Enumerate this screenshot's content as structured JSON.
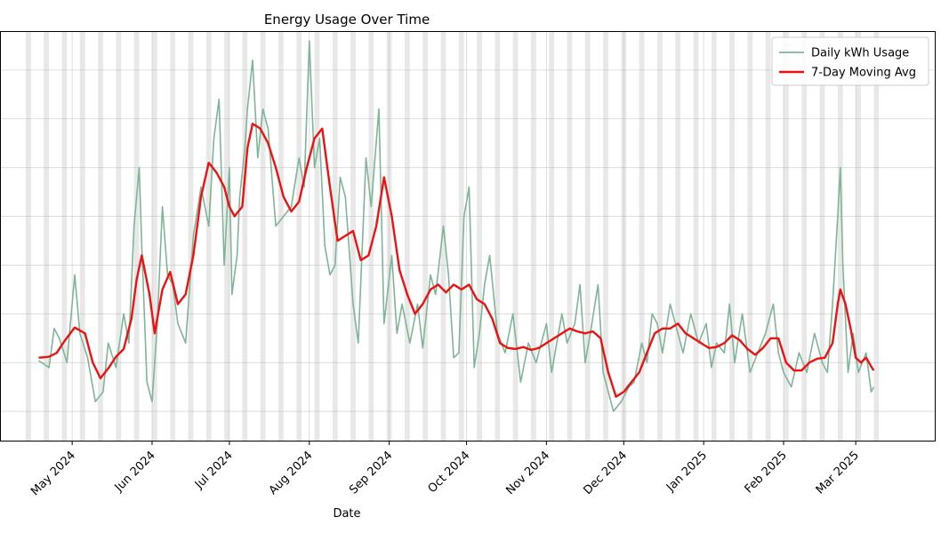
{
  "chart_data": {
    "type": "line",
    "title": "Energy Usage Over Time",
    "xlabel": "Date",
    "ylabel": "",
    "x_range": [
      "2024-04-03",
      "2025-04-01"
    ],
    "y_range": [
      0,
      42
    ],
    "grid": true,
    "legend_position": "top-right",
    "weekend_shading": true,
    "x_tick_labels": [
      {
        "date": "2024-05-01",
        "label": "May 2024"
      },
      {
        "date": "2024-06-01",
        "label": "Jun 2024"
      },
      {
        "date": "2024-07-01",
        "label": "Jul 2024"
      },
      {
        "date": "2024-08-01",
        "label": "Aug 2024"
      },
      {
        "date": "2024-09-01",
        "label": "Sep 2024"
      },
      {
        "date": "2024-10-01",
        "label": "Oct 2024"
      },
      {
        "date": "2024-11-01",
        "label": "Nov 2024"
      },
      {
        "date": "2024-12-01",
        "label": "Dec 2024"
      },
      {
        "date": "2025-01-01",
        "label": "Jan 2025"
      },
      {
        "date": "2025-02-01",
        "label": "Feb 2025"
      },
      {
        "date": "2025-03-01",
        "label": "Mar 2025"
      }
    ],
    "y_gridlines": [
      3,
      8,
      13,
      18,
      23,
      28,
      33,
      38
    ],
    "series": [
      {
        "name": "Daily kWh Usage",
        "color": "#7fb597",
        "start": "2024-04-18",
        "end": "2025-03-08",
        "keypoints": [
          [
            "2024-04-18",
            8.2
          ],
          [
            "2024-04-22",
            7.5
          ],
          [
            "2024-04-24",
            11.5
          ],
          [
            "2024-04-26",
            10.5
          ],
          [
            "2024-04-29",
            8.0
          ],
          [
            "2024-05-02",
            17.0
          ],
          [
            "2024-05-04",
            11.0
          ],
          [
            "2024-05-07",
            8.5
          ],
          [
            "2024-05-10",
            4.0
          ],
          [
            "2024-05-13",
            5.0
          ],
          [
            "2024-05-15",
            10.0
          ],
          [
            "2024-05-18",
            7.5
          ],
          [
            "2024-05-21",
            13.0
          ],
          [
            "2024-05-23",
            10.0
          ],
          [
            "2024-05-25",
            22.0
          ],
          [
            "2024-05-27",
            28.0
          ],
          [
            "2024-05-28",
            20.0
          ],
          [
            "2024-05-30",
            6.0
          ],
          [
            "2024-06-01",
            4.0
          ],
          [
            "2024-06-03",
            12.0
          ],
          [
            "2024-06-05",
            24.0
          ],
          [
            "2024-06-07",
            17.0
          ],
          [
            "2024-06-09",
            16.0
          ],
          [
            "2024-06-11",
            12.0
          ],
          [
            "2024-06-14",
            10.0
          ],
          [
            "2024-06-17",
            21.0
          ],
          [
            "2024-06-20",
            26.0
          ],
          [
            "2024-06-23",
            22.0
          ],
          [
            "2024-06-25",
            31.0
          ],
          [
            "2024-06-27",
            35.0
          ],
          [
            "2024-06-29",
            18.0
          ],
          [
            "2024-07-01",
            28.0
          ],
          [
            "2024-07-02",
            15.0
          ],
          [
            "2024-07-04",
            19.0
          ],
          [
            "2024-07-05",
            25.0
          ],
          [
            "2024-07-07",
            30.0
          ],
          [
            "2024-07-08",
            34.0
          ],
          [
            "2024-07-10",
            39.0
          ],
          [
            "2024-07-12",
            29.0
          ],
          [
            "2024-07-14",
            34.0
          ],
          [
            "2024-07-16",
            32.0
          ],
          [
            "2024-07-19",
            22.0
          ],
          [
            "2024-07-22",
            23.0
          ],
          [
            "2024-07-25",
            24.0
          ],
          [
            "2024-07-28",
            29.0
          ],
          [
            "2024-07-30",
            26.0
          ],
          [
            "2024-08-01",
            41.0
          ],
          [
            "2024-08-03",
            28.0
          ],
          [
            "2024-08-05",
            31.0
          ],
          [
            "2024-08-07",
            20.0
          ],
          [
            "2024-08-09",
            17.0
          ],
          [
            "2024-08-11",
            18.0
          ],
          [
            "2024-08-13",
            27.0
          ],
          [
            "2024-08-15",
            25.0
          ],
          [
            "2024-08-18",
            14.0
          ],
          [
            "2024-08-20",
            10.0
          ],
          [
            "2024-08-23",
            29.0
          ],
          [
            "2024-08-25",
            24.0
          ],
          [
            "2024-08-28",
            34.0
          ],
          [
            "2024-08-30",
            12.0
          ],
          [
            "2024-09-02",
            19.0
          ],
          [
            "2024-09-04",
            11.0
          ],
          [
            "2024-09-06",
            14.0
          ],
          [
            "2024-09-09",
            10.0
          ],
          [
            "2024-09-12",
            14.0
          ],
          [
            "2024-09-14",
            9.5
          ],
          [
            "2024-09-17",
            17.0
          ],
          [
            "2024-09-19",
            15.0
          ],
          [
            "2024-09-22",
            22.0
          ],
          [
            "2024-09-24",
            17.0
          ],
          [
            "2024-09-26",
            8.5
          ],
          [
            "2024-09-28",
            9.0
          ],
          [
            "2024-09-30",
            23.0
          ],
          [
            "2024-10-02",
            26.0
          ],
          [
            "2024-10-04",
            7.5
          ],
          [
            "2024-10-06",
            11.0
          ],
          [
            "2024-10-08",
            16.0
          ],
          [
            "2024-10-10",
            19.0
          ],
          [
            "2024-10-13",
            11.0
          ],
          [
            "2024-10-16",
            9.0
          ],
          [
            "2024-10-19",
            13.0
          ],
          [
            "2024-10-22",
            6.0
          ],
          [
            "2024-10-25",
            10.0
          ],
          [
            "2024-10-28",
            8.0
          ],
          [
            "2024-11-01",
            12.0
          ],
          [
            "2024-11-03",
            7.0
          ],
          [
            "2024-11-05",
            10.0
          ],
          [
            "2024-11-07",
            13.0
          ],
          [
            "2024-11-09",
            10.0
          ],
          [
            "2024-11-12",
            12.0
          ],
          [
            "2024-11-14",
            16.0
          ],
          [
            "2024-11-16",
            8.0
          ],
          [
            "2024-11-18",
            11.0
          ],
          [
            "2024-11-21",
            16.0
          ],
          [
            "2024-11-23",
            7.0
          ],
          [
            "2024-11-25",
            5.0
          ],
          [
            "2024-11-27",
            3.0
          ],
          [
            "2024-11-30",
            4.0
          ],
          [
            "2024-12-03",
            5.5
          ],
          [
            "2024-12-05",
            6.0
          ],
          [
            "2024-12-08",
            10.0
          ],
          [
            "2024-12-10",
            8.0
          ],
          [
            "2024-12-12",
            13.0
          ],
          [
            "2024-12-14",
            12.0
          ],
          [
            "2024-12-16",
            9.0
          ],
          [
            "2024-12-19",
            14.0
          ],
          [
            "2024-12-21",
            12.0
          ],
          [
            "2024-12-24",
            9.0
          ],
          [
            "2024-12-27",
            13.0
          ],
          [
            "2024-12-30",
            10.0
          ],
          [
            "2025-01-02",
            12.0
          ],
          [
            "2025-01-04",
            7.5
          ],
          [
            "2025-01-06",
            10.0
          ],
          [
            "2025-01-09",
            9.0
          ],
          [
            "2025-01-11",
            14.0
          ],
          [
            "2025-01-13",
            8.0
          ],
          [
            "2025-01-16",
            13.0
          ],
          [
            "2025-01-19",
            7.0
          ],
          [
            "2025-01-22",
            9.0
          ],
          [
            "2025-01-25",
            11.0
          ],
          [
            "2025-01-28",
            14.0
          ],
          [
            "2025-01-30",
            9.0
          ],
          [
            "2025-02-01",
            7.0
          ],
          [
            "2025-02-04",
            5.5
          ],
          [
            "2025-02-07",
            9.0
          ],
          [
            "2025-02-10",
            7.0
          ],
          [
            "2025-02-13",
            11.0
          ],
          [
            "2025-02-16",
            8.0
          ],
          [
            "2025-02-18",
            7.0
          ],
          [
            "2025-02-20",
            14.0
          ],
          [
            "2025-02-22",
            23.0
          ],
          [
            "2025-02-23",
            28.0
          ],
          [
            "2025-02-24",
            18.0
          ],
          [
            "2025-02-26",
            7.0
          ],
          [
            "2025-02-28",
            11.0
          ],
          [
            "2025-03-02",
            7.0
          ],
          [
            "2025-03-05",
            9.0
          ],
          [
            "2025-03-07",
            5.0
          ],
          [
            "2025-03-08",
            5.5
          ]
        ]
      },
      {
        "name": "7-Day Moving Avg",
        "color": "#ee1111",
        "start": "2024-04-18",
        "end": "2025-03-08",
        "keypoints": [
          [
            "2024-04-18",
            8.5
          ],
          [
            "2024-04-22",
            8.6
          ],
          [
            "2024-04-25",
            9.0
          ],
          [
            "2024-04-28",
            10.2
          ],
          [
            "2024-05-02",
            11.6
          ],
          [
            "2024-05-06",
            11.0
          ],
          [
            "2024-05-09",
            8.0
          ],
          [
            "2024-05-12",
            6.4
          ],
          [
            "2024-05-15",
            7.4
          ],
          [
            "2024-05-18",
            8.6
          ],
          [
            "2024-05-21",
            9.4
          ],
          [
            "2024-05-24",
            12.5
          ],
          [
            "2024-05-26",
            16.5
          ],
          [
            "2024-05-28",
            19.0
          ],
          [
            "2024-05-31",
            15.0
          ],
          [
            "2024-06-02",
            11.0
          ],
          [
            "2024-06-05",
            15.5
          ],
          [
            "2024-06-08",
            17.3
          ],
          [
            "2024-06-11",
            14.0
          ],
          [
            "2024-06-14",
            15.0
          ],
          [
            "2024-06-17",
            19.0
          ],
          [
            "2024-06-20",
            25.0
          ],
          [
            "2024-06-23",
            28.5
          ],
          [
            "2024-06-26",
            27.5
          ],
          [
            "2024-06-29",
            26.0
          ],
          [
            "2024-07-01",
            24.0
          ],
          [
            "2024-07-03",
            23.0
          ],
          [
            "2024-07-06",
            24.0
          ],
          [
            "2024-07-08",
            30.0
          ],
          [
            "2024-07-10",
            32.5
          ],
          [
            "2024-07-13",
            32.0
          ],
          [
            "2024-07-16",
            30.5
          ],
          [
            "2024-07-19",
            28.0
          ],
          [
            "2024-07-22",
            25.0
          ],
          [
            "2024-07-25",
            23.5
          ],
          [
            "2024-07-28",
            24.5
          ],
          [
            "2024-07-31",
            28.0
          ],
          [
            "2024-08-03",
            31.0
          ],
          [
            "2024-08-06",
            32.0
          ],
          [
            "2024-08-09",
            26.0
          ],
          [
            "2024-08-12",
            20.5
          ],
          [
            "2024-08-15",
            21.0
          ],
          [
            "2024-08-18",
            21.5
          ],
          [
            "2024-08-21",
            18.5
          ],
          [
            "2024-08-24",
            19.0
          ],
          [
            "2024-08-27",
            22.0
          ],
          [
            "2024-08-30",
            27.0
          ],
          [
            "2024-09-02",
            23.0
          ],
          [
            "2024-09-05",
            17.5
          ],
          [
            "2024-09-08",
            15.0
          ],
          [
            "2024-09-11",
            13.0
          ],
          [
            "2024-09-14",
            14.0
          ],
          [
            "2024-09-17",
            15.5
          ],
          [
            "2024-09-20",
            16.0
          ],
          [
            "2024-09-23",
            15.2
          ],
          [
            "2024-09-26",
            16.0
          ],
          [
            "2024-09-29",
            15.5
          ],
          [
            "2024-10-02",
            16.0
          ],
          [
            "2024-10-05",
            14.5
          ],
          [
            "2024-10-08",
            14.0
          ],
          [
            "2024-10-11",
            12.5
          ],
          [
            "2024-10-14",
            10.0
          ],
          [
            "2024-10-17",
            9.5
          ],
          [
            "2024-10-20",
            9.4
          ],
          [
            "2024-10-23",
            9.6
          ],
          [
            "2024-10-26",
            9.3
          ],
          [
            "2024-10-29",
            9.5
          ],
          [
            "2024-11-01",
            10.0
          ],
          [
            "2024-11-04",
            10.5
          ],
          [
            "2024-11-07",
            11.0
          ],
          [
            "2024-11-10",
            11.5
          ],
          [
            "2024-11-13",
            11.2
          ],
          [
            "2024-11-16",
            11.0
          ],
          [
            "2024-11-19",
            11.2
          ],
          [
            "2024-11-22",
            10.5
          ],
          [
            "2024-11-25",
            7.0
          ],
          [
            "2024-11-28",
            4.5
          ],
          [
            "2024-12-01",
            5.0
          ],
          [
            "2024-12-04",
            6.0
          ],
          [
            "2024-12-07",
            7.0
          ],
          [
            "2024-12-10",
            9.0
          ],
          [
            "2024-12-13",
            11.0
          ],
          [
            "2024-12-16",
            11.5
          ],
          [
            "2024-12-19",
            11.5
          ],
          [
            "2024-12-22",
            12.0
          ],
          [
            "2024-12-25",
            11.0
          ],
          [
            "2024-12-28",
            10.5
          ],
          [
            "2024-12-31",
            10.0
          ],
          [
            "2025-01-03",
            9.5
          ],
          [
            "2025-01-06",
            9.6
          ],
          [
            "2025-01-09",
            10.0
          ],
          [
            "2025-01-12",
            10.8
          ],
          [
            "2025-01-15",
            10.3
          ],
          [
            "2025-01-18",
            9.4
          ],
          [
            "2025-01-21",
            8.8
          ],
          [
            "2025-01-24",
            9.5
          ],
          [
            "2025-01-27",
            10.5
          ],
          [
            "2025-01-30",
            10.5
          ],
          [
            "2025-02-02",
            8.0
          ],
          [
            "2025-02-05",
            7.2
          ],
          [
            "2025-02-08",
            7.2
          ],
          [
            "2025-02-11",
            8.0
          ],
          [
            "2025-02-14",
            8.4
          ],
          [
            "2025-02-17",
            8.5
          ],
          [
            "2025-02-20",
            10.0
          ],
          [
            "2025-02-22",
            14.0
          ],
          [
            "2025-02-23",
            15.5
          ],
          [
            "2025-02-25",
            14.0
          ],
          [
            "2025-02-27",
            11.5
          ],
          [
            "2025-03-01",
            8.5
          ],
          [
            "2025-03-03",
            8.0
          ],
          [
            "2025-03-05",
            8.5
          ],
          [
            "2025-03-07",
            7.6
          ],
          [
            "2025-03-08",
            7.2
          ]
        ]
      }
    ]
  }
}
